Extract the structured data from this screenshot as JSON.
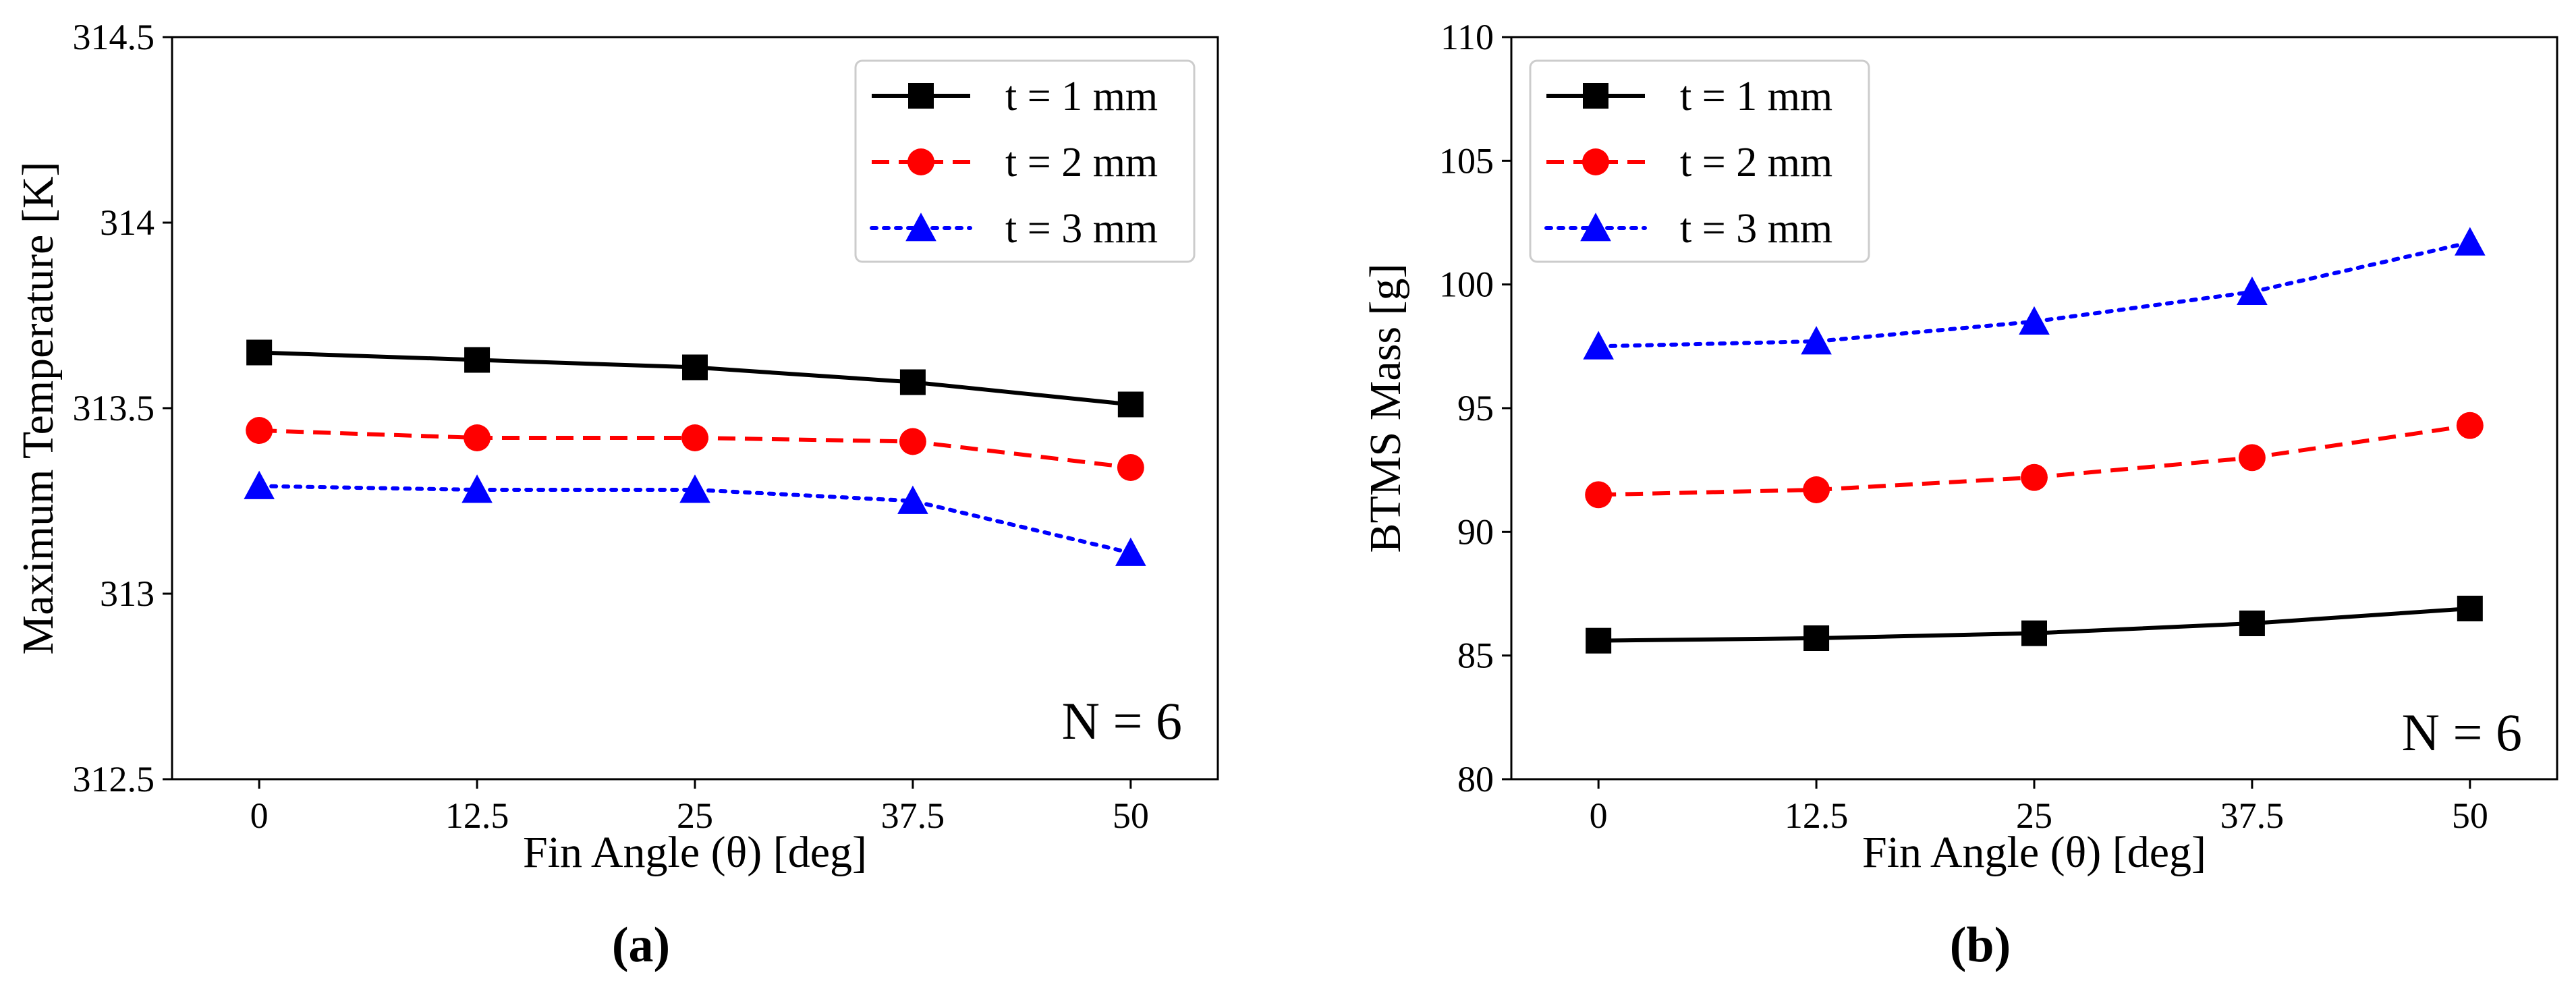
{
  "chart_data": [
    {
      "type": "line",
      "panel_label": "(a)",
      "annotation": "N = 6",
      "xlabel": "Fin Angle (θ) [deg]",
      "ylabel": "Maximum Temperature [K]",
      "categories": [
        "0",
        "12.5",
        "25",
        "37.5",
        "50"
      ],
      "x": [
        0,
        12.5,
        25,
        37.5,
        50
      ],
      "ylim": [
        312.5,
        314.5
      ],
      "yticks": [
        "312.5",
        "313",
        "313.5",
        "314",
        "314.5"
      ],
      "legend_position": "top-right",
      "grid": false,
      "series": [
        {
          "name": "t = 1 mm",
          "values": [
            313.65,
            313.63,
            313.61,
            313.57,
            313.51
          ],
          "color": "#000000",
          "marker": "square",
          "dash": "solid"
        },
        {
          "name": "t = 2 mm",
          "values": [
            313.44,
            313.42,
            313.42,
            313.41,
            313.34
          ],
          "color": "#ff0000",
          "marker": "circle",
          "dash": "dashed"
        },
        {
          "name": "t = 3 mm",
          "values": [
            313.29,
            313.28,
            313.28,
            313.25,
            313.11
          ],
          "color": "#0000ff",
          "marker": "triangle",
          "dash": "dotted"
        }
      ]
    },
    {
      "type": "line",
      "panel_label": "(b)",
      "annotation": "N = 6",
      "xlabel": "Fin Angle (θ) [deg]",
      "ylabel": "BTMS Mass [g]",
      "categories": [
        "0",
        "12.5",
        "25",
        "37.5",
        "50"
      ],
      "x": [
        0,
        12.5,
        25,
        37.5,
        50
      ],
      "ylim": [
        80,
        110
      ],
      "yticks": [
        "80",
        "85",
        "90",
        "95",
        "100",
        "105",
        "110"
      ],
      "legend_position": "top-left",
      "grid": false,
      "series": [
        {
          "name": "t = 1 mm",
          "values": [
            85.6,
            85.7,
            85.9,
            86.3,
            86.9
          ],
          "color": "#000000",
          "marker": "square",
          "dash": "solid"
        },
        {
          "name": "t = 2 mm",
          "values": [
            91.5,
            91.7,
            92.2,
            93.0,
            94.3
          ],
          "color": "#ff0000",
          "marker": "circle",
          "dash": "dashed"
        },
        {
          "name": "t = 3 mm",
          "values": [
            97.5,
            97.7,
            98.5,
            99.7,
            101.7
          ],
          "color": "#0000ff",
          "marker": "triangle",
          "dash": "dotted"
        }
      ]
    }
  ]
}
